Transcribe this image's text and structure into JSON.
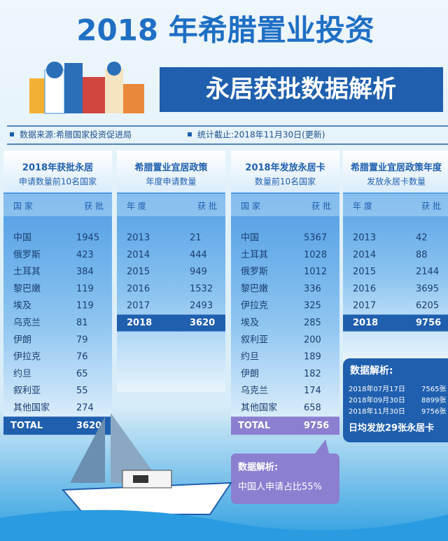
{
  "header": {
    "title": "2018 年希腊置业投资",
    "subtitle": "永居获批数据解析"
  },
  "source": [
    "数据来源:希腊国家投资促进局",
    "统计截止:2018年11月30日(更新)"
  ],
  "panels": [
    {
      "title": [
        "2018年获批永居",
        "申请数量前10名国家"
      ],
      "headers": [
        "国 家",
        "获 批"
      ],
      "rows": [
        [
          "中国",
          "1945"
        ],
        [
          "俄罗斯",
          "423"
        ],
        [
          "土耳其",
          "384"
        ],
        [
          "黎巴嫩",
          "119"
        ],
        [
          "埃及",
          "119"
        ],
        [
          "乌克兰",
          "81"
        ],
        [
          "伊朗",
          "79"
        ],
        [
          "伊拉克",
          "76"
        ],
        [
          "约旦",
          "65"
        ],
        [
          "叙利亚",
          "55"
        ],
        [
          "其他国家",
          "274"
        ]
      ],
      "total": [
        "TOTAL",
        "3620"
      ]
    },
    {
      "title": [
        "希腊置业宜居政策",
        "年度申请数量"
      ],
      "headers": [
        "年 度",
        "获 批"
      ],
      "rows": [
        [
          "2013",
          "21"
        ],
        [
          "2014",
          "444"
        ],
        [
          "2015",
          "949"
        ],
        [
          "2016",
          "1532"
        ],
        [
          "2017",
          "2493"
        ]
      ],
      "highlight": [
        "2018",
        "3620"
      ]
    },
    {
      "title": [
        "2018年发放永居卡",
        "数量前10名国家"
      ],
      "headers": [
        "国 家",
        "获 批"
      ],
      "rows": [
        [
          "中国",
          "5367"
        ],
        [
          "土耳其",
          "1028"
        ],
        [
          "俄罗斯",
          "1012"
        ],
        [
          "黎巴嫩",
          "336"
        ],
        [
          "伊拉克",
          "325"
        ],
        [
          "埃及",
          "285"
        ],
        [
          "叙利亚",
          "200"
        ],
        [
          "约旦",
          "189"
        ],
        [
          "伊朗",
          "182"
        ],
        [
          "乌克兰",
          "174"
        ],
        [
          "其他国家",
          "658"
        ]
      ],
      "total": [
        "TOTAL",
        "9756"
      ],
      "note": {
        "title": "数据解析:",
        "text": "中国人申请占比55%"
      }
    },
    {
      "title": [
        "希腊置业宜居政策年度",
        "发放永居卡数量"
      ],
      "headers": [
        "年 度",
        "获 批"
      ],
      "rows": [
        [
          "2013",
          "42"
        ],
        [
          "2014",
          "88"
        ],
        [
          "2015",
          "2144"
        ],
        [
          "2016",
          "3695"
        ],
        [
          "2017",
          "6205"
        ]
      ],
      "highlight": [
        "2018",
        "9756"
      ],
      "note": {
        "title": "数据解析:",
        "rows": [
          [
            "2018年07月17日",
            "7565张"
          ],
          [
            "2018年09月30日",
            "8899张"
          ],
          [
            "2018年11月30日",
            "9756张"
          ]
        ],
        "text": "日均发放29张永居卡"
      }
    }
  ]
}
